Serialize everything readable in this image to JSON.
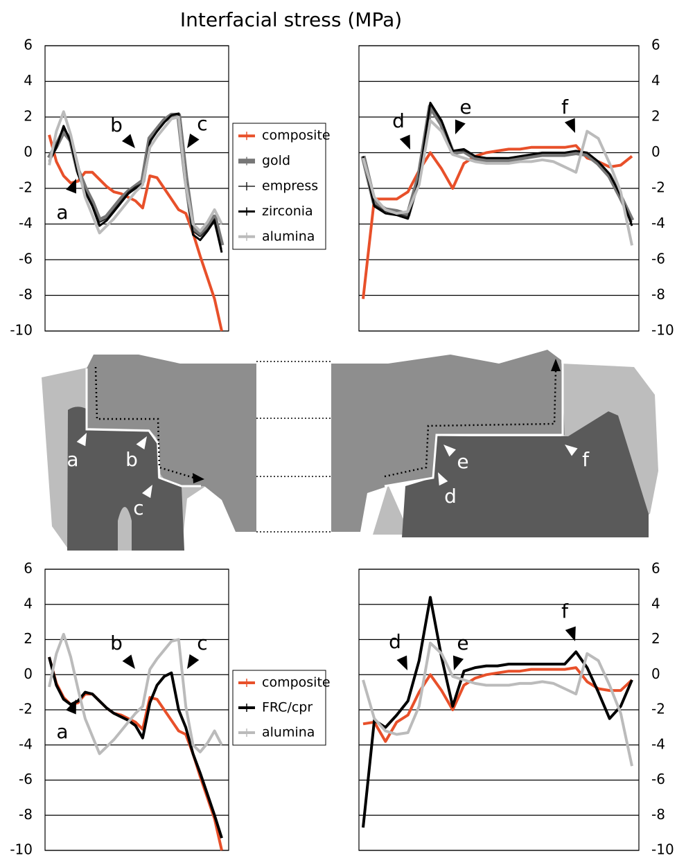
{
  "title": "Interfacial stress (MPa)",
  "chart_data": [
    {
      "type": "line",
      "categories": [
        null,
        null,
        null,
        null,
        null,
        null,
        null,
        null,
        null,
        null,
        null,
        null,
        null,
        null,
        null,
        null,
        null,
        null,
        null,
        null,
        null,
        null,
        null,
        null,
        null
      ],
      "series": [
        {
          "name": "composite",
          "color": "#e8502a",
          "width": 4,
          "values": [
            1.0,
            -0.5,
            -1.3,
            -1.7,
            -1.6,
            -1.1,
            -1.1,
            -1.5,
            -1.9,
            -2.2,
            -2.3,
            -2.5,
            -2.7,
            -3.1,
            -1.3,
            -1.4,
            -2.0,
            -2.6,
            -3.2,
            -3.4,
            -4.5,
            -5.8,
            -7.0,
            -8.2,
            -10
          ]
        },
        {
          "name": "gold",
          "color": "#777777",
          "width": 7,
          "values": [
            -0.3,
            0.4,
            1.2,
            0.7,
            -1.0,
            -2.0,
            -2.8,
            -3.8,
            -3.6,
            -3.1,
            -2.6,
            -2.2,
            -1.9,
            -1.6,
            0.8,
            1.3,
            1.8,
            2.1,
            2.1,
            -1.4,
            -4.3,
            -4.6,
            -4.2,
            -3.6,
            -5.2
          ]
        },
        {
          "name": "empress",
          "color": "#222222",
          "width": 1.5,
          "values": [
            -0.4,
            0.5,
            1.3,
            0.8,
            -1.1,
            -2.1,
            -2.9,
            -3.9,
            -3.7,
            -3.2,
            -2.7,
            -2.2,
            -1.9,
            -1.7,
            0.7,
            1.2,
            1.7,
            2.1,
            2.2,
            -1.5,
            -4.4,
            -4.7,
            -4.3,
            -3.7,
            -5.4
          ]
        },
        {
          "name": "zirconia",
          "color": "#000000",
          "width": 3,
          "values": [
            -0.5,
            0.3,
            1.5,
            0.6,
            -1.2,
            -2.2,
            -3.0,
            -4.1,
            -3.8,
            -3.3,
            -2.8,
            -2.3,
            -2.0,
            -1.8,
            0.6,
            1.2,
            1.7,
            2.1,
            2.2,
            -1.6,
            -4.6,
            -4.9,
            -4.4,
            -3.8,
            -5.6
          ]
        },
        {
          "name": "alumina",
          "color": "#bbbbbb",
          "width": 4,
          "values": [
            -0.7,
            1.2,
            2.3,
            1.0,
            -0.8,
            -2.5,
            -3.5,
            -4.5,
            -4.1,
            -3.7,
            -3.2,
            -2.7,
            -2.2,
            -1.8,
            0.3,
            0.9,
            1.4,
            1.9,
            2.0,
            -1.8,
            -4.0,
            -4.4,
            -3.9,
            -3.2,
            -4.0
          ]
        }
      ],
      "ylim": [
        -10,
        6
      ],
      "yticks": [
        -10,
        -8,
        -6,
        -4,
        -2,
        0,
        2,
        4,
        6
      ],
      "grid": true,
      "y_axis_side": "left",
      "legend": "right",
      "annotations": [
        "a",
        "b",
        "c"
      ]
    },
    {
      "type": "line",
      "categories": [
        null,
        null,
        null,
        null,
        null,
        null,
        null,
        null,
        null,
        null,
        null,
        null,
        null,
        null,
        null,
        null,
        null,
        null,
        null,
        null,
        null,
        null,
        null,
        null,
        null
      ],
      "series": [
        {
          "color": "#e8502a",
          "width": 4,
          "values": [
            -8.2,
            -2.6,
            -2.6,
            -2.6,
            -2.2,
            -1.0,
            0.0,
            -0.9,
            -2.0,
            -0.6,
            -0.2,
            0.0,
            0.1,
            0.2,
            0.2,
            0.3,
            0.3,
            0.3,
            0.3,
            0.4,
            -0.3,
            -0.5,
            -0.8,
            -0.7,
            -0.2
          ]
        },
        {
          "color": "#777777",
          "width": 7,
          "values": [
            -0.2,
            -2.8,
            -3.2,
            -3.3,
            -3.5,
            -1.3,
            2.6,
            1.6,
            0.0,
            0.1,
            -0.3,
            -0.4,
            -0.4,
            -0.4,
            -0.3,
            -0.2,
            -0.1,
            -0.1,
            -0.1,
            0.0,
            -0.1,
            -0.6,
            -1.3,
            -2.5,
            -3.8
          ]
        },
        {
          "color": "#222222",
          "width": 1.5,
          "values": [
            -0.2,
            -2.9,
            -3.3,
            -3.4,
            -3.6,
            -1.4,
            2.7,
            1.7,
            0.1,
            0.1,
            -0.2,
            -0.3,
            -0.3,
            -0.3,
            -0.2,
            -0.1,
            0.0,
            0.0,
            0.0,
            0.1,
            0.0,
            -0.5,
            -1.2,
            -2.4,
            -3.9
          ]
        },
        {
          "color": "#000000",
          "width": 3,
          "values": [
            -0.2,
            -3.0,
            -3.4,
            -3.5,
            -3.7,
            -1.5,
            2.8,
            1.8,
            0.1,
            0.2,
            -0.2,
            -0.3,
            -0.3,
            -0.3,
            -0.2,
            -0.1,
            0.0,
            0.0,
            0.0,
            0.1,
            0.0,
            -0.5,
            -1.2,
            -2.4,
            -4.1
          ]
        },
        {
          "color": "#bbbbbb",
          "width": 4,
          "values": [
            -0.3,
            -2.5,
            -3.2,
            -3.4,
            -3.3,
            -1.8,
            1.8,
            1.2,
            -0.1,
            -0.3,
            -0.5,
            -0.6,
            -0.6,
            -0.6,
            -0.5,
            -0.5,
            -0.4,
            -0.5,
            -0.8,
            -1.1,
            1.2,
            0.8,
            -0.6,
            -2.2,
            -5.2
          ]
        }
      ],
      "ylim": [
        -10,
        6
      ],
      "yticks": [
        -10,
        -8,
        -6,
        -4,
        -2,
        0,
        2,
        4,
        6
      ],
      "grid": true,
      "y_axis_side": "right",
      "annotations": [
        "d",
        "e",
        "f"
      ]
    },
    {
      "type": "line",
      "categories": [
        null,
        null,
        null,
        null,
        null,
        null,
        null,
        null,
        null,
        null,
        null,
        null,
        null,
        null,
        null,
        null,
        null,
        null,
        null,
        null,
        null,
        null,
        null,
        null,
        null
      ],
      "series": [
        {
          "name": "composite",
          "color": "#e8502a",
          "width": 4,
          "values": [
            1.0,
            -0.5,
            -1.3,
            -1.7,
            -1.6,
            -1.1,
            -1.1,
            -1.5,
            -1.9,
            -2.2,
            -2.3,
            -2.5,
            -2.7,
            -3.1,
            -1.3,
            -1.4,
            -2.0,
            -2.6,
            -3.2,
            -3.4,
            -4.5,
            -5.8,
            -7.0,
            -8.2,
            -10
          ]
        },
        {
          "name": "FRC/cpr",
          "color": "#000000",
          "width": 4,
          "values": [
            1.0,
            -0.6,
            -1.4,
            -1.7,
            -1.5,
            -1.0,
            -1.1,
            -1.5,
            -1.9,
            -2.2,
            -2.4,
            -2.6,
            -2.9,
            -3.6,
            -1.6,
            -0.6,
            -0.1,
            0.1,
            -2.0,
            -3.0,
            -4.5,
            -5.6,
            -6.8,
            -8.0,
            -9.3
          ]
        },
        {
          "name": "alumina",
          "color": "#bbbbbb",
          "width": 4,
          "values": [
            -0.7,
            1.2,
            2.3,
            1.0,
            -0.8,
            -2.5,
            -3.5,
            -4.5,
            -4.1,
            -3.7,
            -3.2,
            -2.7,
            -2.2,
            -1.8,
            0.3,
            0.9,
            1.4,
            1.9,
            2.0,
            -1.8,
            -4.0,
            -4.4,
            -3.9,
            -3.2,
            -4.0
          ]
        }
      ],
      "ylim": [
        -10,
        6
      ],
      "yticks": [
        -10,
        -8,
        -6,
        -4,
        -2,
        0,
        2,
        4,
        6
      ],
      "grid": true,
      "y_axis_side": "left",
      "legend": "right",
      "annotations": [
        "a",
        "b",
        "c"
      ]
    },
    {
      "type": "line",
      "categories": [
        null,
        null,
        null,
        null,
        null,
        null,
        null,
        null,
        null,
        null,
        null,
        null,
        null,
        null,
        null,
        null,
        null,
        null,
        null,
        null,
        null,
        null,
        null,
        null,
        null
      ],
      "series": [
        {
          "color": "#e8502a",
          "width": 4,
          "values": [
            -2.8,
            -2.7,
            -3.8,
            -2.7,
            -2.3,
            -1.0,
            0.0,
            -0.9,
            -2.0,
            -0.6,
            -0.2,
            0.0,
            0.1,
            0.2,
            0.2,
            0.3,
            0.3,
            0.3,
            0.3,
            0.4,
            -0.4,
            -0.8,
            -0.9,
            -0.9,
            -0.3
          ]
        },
        {
          "color": "#000000",
          "width": 4,
          "values": [
            -8.7,
            -2.6,
            -3.0,
            -2.3,
            -1.5,
            0.8,
            4.4,
            1.0,
            -1.8,
            0.2,
            0.4,
            0.5,
            0.5,
            0.6,
            0.6,
            0.6,
            0.6,
            0.6,
            0.6,
            1.3,
            0.4,
            -1.0,
            -2.5,
            -1.8,
            -0.3
          ]
        },
        {
          "color": "#bbbbbb",
          "width": 4,
          "values": [
            -0.3,
            -2.5,
            -3.2,
            -3.4,
            -3.3,
            -1.8,
            1.8,
            1.2,
            -0.1,
            -0.3,
            -0.5,
            -0.6,
            -0.6,
            -0.6,
            -0.5,
            -0.5,
            -0.4,
            -0.5,
            -0.8,
            -1.1,
            1.2,
            0.8,
            -0.6,
            -2.2,
            -5.2
          ]
        }
      ],
      "ylim": [
        -10,
        6
      ],
      "yticks": [
        -10,
        -8,
        -6,
        -4,
        -2,
        0,
        2,
        4,
        6
      ],
      "grid": true,
      "y_axis_side": "right",
      "annotations": [
        "d",
        "e",
        "f"
      ]
    }
  ],
  "diagram": {
    "labels": [
      "a",
      "b",
      "c",
      "e",
      "f",
      "d"
    ]
  }
}
